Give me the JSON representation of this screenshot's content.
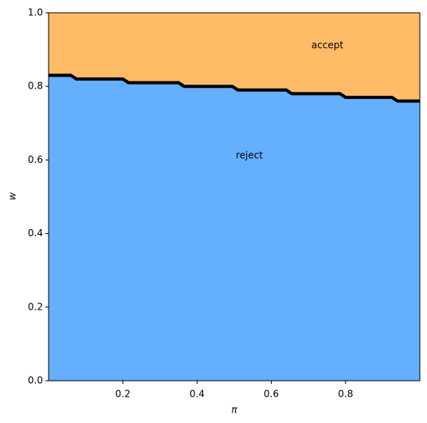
{
  "chart_data": {
    "type": "area",
    "x_label": "π",
    "y_label": "w",
    "annotations": [
      "accept",
      "reject"
    ],
    "x": [
      0,
      0.06,
      0.075,
      0.2,
      0.215,
      0.35,
      0.365,
      0.495,
      0.51,
      0.64,
      0.655,
      0.785,
      0.8,
      0.925,
      0.94,
      1
    ],
    "series": [
      {
        "name": "reject",
        "color": "#64b0ff",
        "values": [
          0.83,
          0.83,
          0.82,
          0.82,
          0.81,
          0.81,
          0.8,
          0.8,
          0.79,
          0.79,
          0.78,
          0.78,
          0.77,
          0.77,
          0.76,
          0.76
        ]
      }
    ],
    "above_color": "#ffbb66",
    "boundary_color": "#000000",
    "xlim": [
      0,
      1
    ],
    "ylim": [
      0,
      1
    ],
    "xticks": [
      0.2,
      0.4,
      0.6,
      0.8
    ],
    "yticks": [
      {
        "value": 0,
        "label": "0.0"
      },
      0.2,
      0.4,
      0.6,
      0.8,
      {
        "value": 1,
        "label": "1.0"
      }
    ],
    "grid": false
  }
}
